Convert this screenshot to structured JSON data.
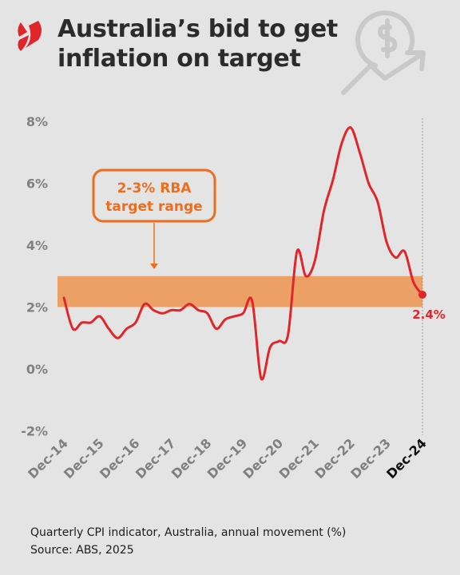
{
  "header": {
    "title": "Australia’s bid to get inflation on target",
    "logo_icon": "sbs-news-logo-icon",
    "decoration_icon": "dollar-growth-arrow-icon"
  },
  "footer": {
    "note": "Quarterly CPI indicator, Australia, annual movement (%)",
    "source": "Source: ABS, 2025"
  },
  "colors": {
    "background": "#e4e4e4",
    "line": "#e0262a",
    "target_band": "#eda065",
    "annotation": "#ec6e1d",
    "title": "#2b2b2b",
    "axis_text": "#808080"
  },
  "chart_data": {
    "type": "line",
    "title": "",
    "xlabel": "",
    "ylabel": "",
    "ylim": [
      -2,
      8
    ],
    "yticks": [
      -2,
      0,
      2,
      4,
      6,
      8
    ],
    "ytick_labels": [
      "-2%",
      "0%",
      "2%",
      "4%",
      "6%",
      "8%"
    ],
    "x": [
      "Dec-14",
      "Mar-15",
      "Jun-15",
      "Sep-15",
      "Dec-15",
      "Mar-16",
      "Jun-16",
      "Sep-16",
      "Dec-16",
      "Mar-17",
      "Jun-17",
      "Sep-17",
      "Dec-17",
      "Mar-18",
      "Jun-18",
      "Sep-18",
      "Dec-18",
      "Mar-19",
      "Jun-19",
      "Sep-19",
      "Dec-19",
      "Mar-20",
      "Jun-20",
      "Sep-20",
      "Dec-20",
      "Mar-21",
      "Jun-21",
      "Sep-21",
      "Dec-21",
      "Mar-22",
      "Jun-22",
      "Sep-22",
      "Dec-22",
      "Mar-23",
      "Jun-23",
      "Sep-23",
      "Dec-23",
      "Mar-24",
      "Jun-24",
      "Sep-24",
      "Dec-24"
    ],
    "xtick_labels": [
      "Dec-14",
      "Dec-15",
      "Dec-16",
      "Dec-17",
      "Dec-18",
      "Dec-19",
      "Dec-20",
      "Dec-21",
      "Dec-22",
      "Dec-23",
      "Dec-24"
    ],
    "highlighted_xtick": "Dec-24",
    "series": [
      {
        "values": [
          2.3,
          1.3,
          1.5,
          1.5,
          1.7,
          1.3,
          1.0,
          1.3,
          1.5,
          2.1,
          1.9,
          1.8,
          1.9,
          1.9,
          2.1,
          1.9,
          1.8,
          1.3,
          1.6,
          1.7,
          1.8,
          2.2,
          -0.3,
          0.7,
          0.9,
          1.1,
          3.8,
          3.0,
          3.5,
          5.1,
          6.1,
          7.3,
          7.8,
          7.0,
          6.0,
          5.4,
          4.1,
          3.6,
          3.8,
          2.8,
          2.4
        ]
      }
    ],
    "target_band": {
      "low": 2,
      "high": 3
    },
    "annotations": [
      {
        "text_line1": "2-3% RBA",
        "text_line2": "target range",
        "points_to": "target_band"
      },
      {
        "text": "2.4%",
        "x": "Dec-24",
        "y": 2.4
      }
    ],
    "reference_line": {
      "x": "Dec-24",
      "style": "dashed"
    },
    "grid": false,
    "legend": "none"
  }
}
